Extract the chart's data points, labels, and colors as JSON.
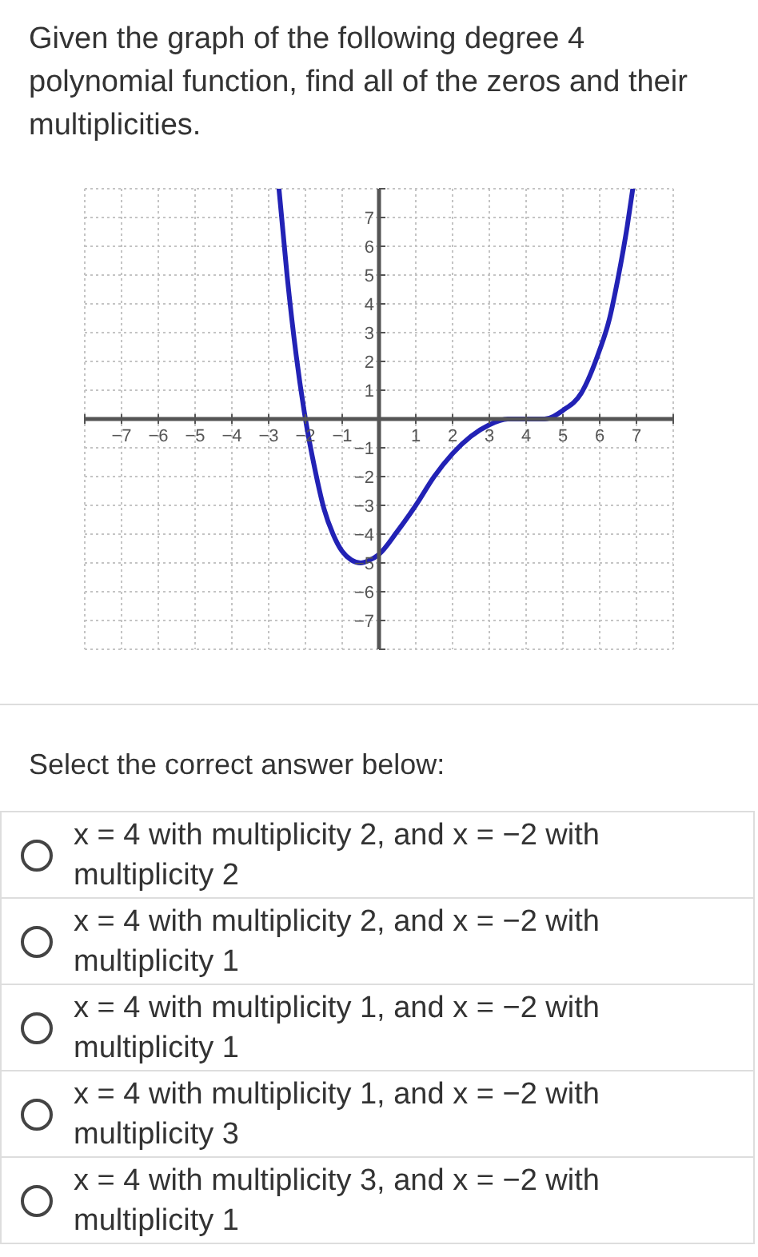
{
  "chart_data": {
    "type": "line",
    "title": "Given the graph of the following degree 4 polynomial function, find all of the zeros and their multiplicities.",
    "annotations": [
      "Select the correct answer below:",
      "x = 4 with multiplicity 2, and x = −2 with multiplicity 2",
      "x = 4 with multiplicity 2, and x = −2 with multiplicity 1",
      "x = 4 with multiplicity 1, and x = −2 with multiplicity 1",
      "x = 4 with multiplicity 1, and x = −2 with multiplicity 3",
      "x = 4 with multiplicity 3, and x = −2 with multiplicity 1"
    ],
    "x": [
      -2.72,
      -2.5,
      -2.25,
      -2,
      -1.75,
      -1.5,
      -1.25,
      -1,
      -0.75,
      -0.5,
      -0.25,
      0,
      0.5,
      1,
      1.5,
      2,
      2.5,
      3,
      3.5,
      4,
      4.5,
      5,
      5.5,
      6,
      6.25,
      6.5,
      6.75,
      6.9
    ],
    "series": [
      {
        "color": "#2222b5",
        "values": [
          8,
          5.0,
          2.2,
          0,
          -1.7,
          -3.1,
          -4.0,
          -4.6,
          -4.9,
          -5.0,
          -4.9,
          -4.7,
          -3.9,
          -3.0,
          -2.0,
          -1.2,
          -0.6,
          -0.2,
          0,
          0,
          0,
          0.3,
          0.9,
          2.4,
          3.4,
          4.9,
          6.7,
          8
        ]
      }
    ],
    "xlim": [
      -8,
      8
    ],
    "ylim": [
      -8,
      8
    ],
    "xticks": [
      {
        "value": -8,
        "label": null
      },
      -7,
      -6,
      -5,
      -4,
      -3,
      -2,
      -1,
      1,
      2,
      3,
      4,
      5,
      6,
      7,
      {
        "value": 8,
        "label": null
      }
    ],
    "yticks": [
      {
        "value": -8,
        "label": null
      },
      -7,
      -6,
      -5,
      -4,
      -3,
      -2,
      -1,
      1,
      2,
      3,
      4,
      5,
      6,
      7,
      {
        "value": 8,
        "label": null
      }
    ],
    "grid": true
  }
}
